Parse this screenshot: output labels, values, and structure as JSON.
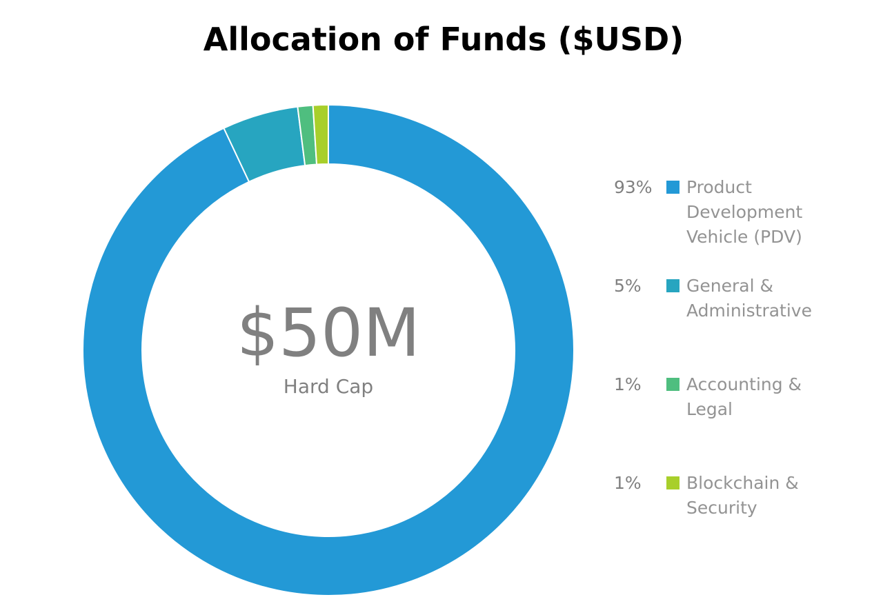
{
  "chart_data": {
    "type": "pie",
    "title": "Allocation of Funds ($USD)",
    "center_value": "$50M",
    "center_caption": "Hard Cap",
    "slices": [
      {
        "label": "Product Development Vehicle (PDV)",
        "percent_label": "93%",
        "value": 93,
        "color": "#2399D6"
      },
      {
        "label": "General & Administrative",
        "percent_label": "5%",
        "value": 5,
        "color": "#27A5C0"
      },
      {
        "label": "Accounting & Legal",
        "percent_label": "1%",
        "value": 1,
        "color": "#4FBE7F"
      },
      {
        "label": "Blockchain & Security",
        "percent_label": "1%",
        "value": 1,
        "color": "#A8CF2B"
      }
    ],
    "legend_position": "right"
  }
}
